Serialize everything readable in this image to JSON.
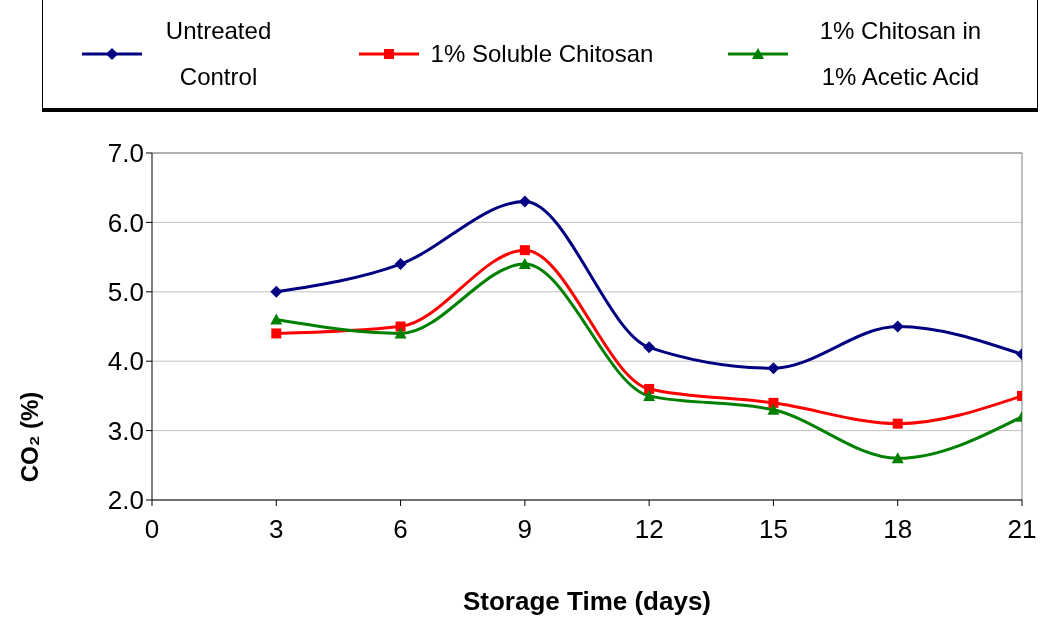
{
  "chart_data": {
    "type": "line",
    "xlabel": "Storage Time (days)",
    "ylabel": "CO₂ (%)",
    "x": [
      3,
      6,
      9,
      12,
      15,
      18,
      21
    ],
    "series": [
      {
        "name": "Untreated Control",
        "color": "#000080",
        "marker": "diamond",
        "values": [
          5.0,
          5.4,
          6.3,
          4.2,
          3.9,
          4.5,
          4.1
        ]
      },
      {
        "name": "1% Soluble Chitosan",
        "color": "#ff0000",
        "marker": "square",
        "values": [
          4.4,
          4.5,
          5.6,
          3.6,
          3.4,
          3.1,
          3.5
        ]
      },
      {
        "name": "1% Chitosan in 1% Acetic Acid",
        "color": "#008000",
        "marker": "triangle",
        "values": [
          4.6,
          4.4,
          5.4,
          3.5,
          3.3,
          2.6,
          3.2
        ]
      }
    ],
    "xlim": [
      0,
      21
    ],
    "xticks": [
      0,
      3,
      6,
      9,
      12,
      15,
      18,
      21
    ],
    "ylim": [
      2,
      7
    ],
    "yticks": [
      {
        "value": 2,
        "label": "2.0"
      },
      {
        "value": 3,
        "label": "3.0"
      },
      {
        "value": 4,
        "label": "4.0"
      },
      {
        "value": 5,
        "label": "5.0"
      },
      {
        "value": 6,
        "label": "6.0"
      },
      {
        "value": 7,
        "label": "7.0"
      }
    ],
    "grid": "y",
    "legend": "top"
  }
}
